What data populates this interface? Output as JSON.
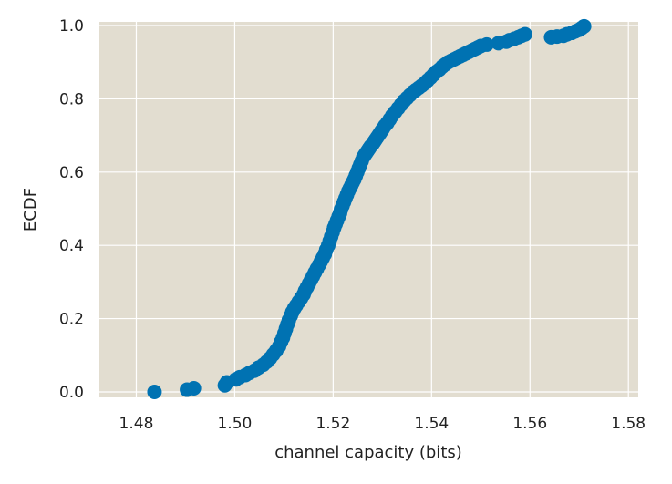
{
  "chart_data": {
    "type": "scatter",
    "title": "",
    "xlabel": "channel capacity (bits)",
    "ylabel": "ECDF",
    "xlim": [
      1.4725,
      1.582
    ],
    "ylim": [
      -0.015,
      1.01
    ],
    "xticks": [
      1.48,
      1.5,
      1.52,
      1.54,
      1.56,
      1.58
    ],
    "xtick_labels": [
      "1.48",
      "1.50",
      "1.52",
      "1.54",
      "1.56",
      "1.58"
    ],
    "yticks": [
      0.0,
      0.2,
      0.4,
      0.6,
      0.8,
      1.0
    ],
    "ytick_labels": [
      "0.0",
      "0.2",
      "0.4",
      "0.6",
      "0.8",
      "1.0"
    ],
    "grid": true,
    "legend": "none",
    "colors": {
      "background": "#e2ddd0",
      "grid": "#ffffff",
      "points": "#0072b2"
    },
    "series": [
      {
        "x": [
          1.4837,
          1.4903,
          1.4917,
          1.498,
          1.4984,
          1.5002,
          1.501,
          1.5022,
          1.503,
          1.504,
          1.5048,
          1.5058,
          1.5065,
          1.5072,
          1.5078,
          1.5084,
          1.509,
          1.5094,
          1.5098,
          1.5101,
          1.5104,
          1.5107,
          1.511,
          1.5114,
          1.5117,
          1.5121,
          1.5125,
          1.513,
          1.5135,
          1.514,
          1.5143,
          1.5147,
          1.5151,
          1.5155,
          1.5159,
          1.5163,
          1.5167,
          1.5171,
          1.5175,
          1.5179,
          1.5183,
          1.5186,
          1.519,
          1.5193,
          1.5196,
          1.5199,
          1.5202,
          1.5205,
          1.5208,
          1.5211,
          1.5214,
          1.5216,
          1.5219,
          1.5222,
          1.5225,
          1.5228,
          1.5231,
          1.5234,
          1.5237,
          1.524,
          1.5243,
          1.5246,
          1.5249,
          1.5252,
          1.5255,
          1.5258,
          1.5261,
          1.5264,
          1.5267,
          1.527,
          1.5273,
          1.5276,
          1.528,
          1.5283,
          1.5286,
          1.5289,
          1.5292,
          1.5295,
          1.5298,
          1.5301,
          1.5305,
          1.531,
          1.5315,
          1.532,
          1.5326,
          1.5332,
          1.5338,
          1.5344,
          1.535,
          1.5356,
          1.5362,
          1.5368,
          1.5374,
          1.538,
          1.5386,
          1.5392,
          1.5398,
          1.5404,
          1.541,
          1.5416,
          1.5422,
          1.5428,
          1.5434,
          1.544,
          1.5446,
          1.5452,
          1.5458,
          1.5464,
          1.547,
          1.5476,
          1.5482,
          1.5488,
          1.5494,
          1.55,
          1.5512,
          1.5536,
          1.5552,
          1.5558,
          1.5568,
          1.5576,
          1.5583,
          1.559,
          1.5643,
          1.5655,
          1.5668,
          1.5675,
          1.5685,
          1.5692,
          1.5699,
          1.5705,
          1.571
        ],
        "y": [
          0.0,
          0.006,
          0.01,
          0.018,
          0.026,
          0.034,
          0.04,
          0.046,
          0.052,
          0.058,
          0.066,
          0.074,
          0.082,
          0.092,
          0.102,
          0.112,
          0.124,
          0.136,
          0.148,
          0.16,
          0.172,
          0.184,
          0.196,
          0.208,
          0.218,
          0.228,
          0.236,
          0.246,
          0.256,
          0.266,
          0.276,
          0.286,
          0.296,
          0.306,
          0.316,
          0.326,
          0.336,
          0.346,
          0.356,
          0.366,
          0.376,
          0.388,
          0.4,
          0.412,
          0.424,
          0.436,
          0.448,
          0.458,
          0.468,
          0.478,
          0.488,
          0.498,
          0.508,
          0.518,
          0.528,
          0.538,
          0.548,
          0.556,
          0.564,
          0.572,
          0.58,
          0.59,
          0.6,
          0.61,
          0.62,
          0.63,
          0.64,
          0.646,
          0.652,
          0.658,
          0.664,
          0.67,
          0.676,
          0.682,
          0.688,
          0.694,
          0.7,
          0.706,
          0.712,
          0.718,
          0.726,
          0.734,
          0.744,
          0.754,
          0.764,
          0.774,
          0.784,
          0.794,
          0.802,
          0.81,
          0.818,
          0.824,
          0.83,
          0.836,
          0.842,
          0.85,
          0.858,
          0.866,
          0.874,
          0.88,
          0.888,
          0.894,
          0.9,
          0.904,
          0.908,
          0.912,
          0.916,
          0.92,
          0.924,
          0.928,
          0.932,
          0.936,
          0.94,
          0.944,
          0.948,
          0.952,
          0.956,
          0.96,
          0.964,
          0.968,
          0.972,
          0.976,
          0.968,
          0.97,
          0.972,
          0.976,
          0.98,
          0.984,
          0.988,
          0.993,
          0.998
        ]
      }
    ]
  }
}
